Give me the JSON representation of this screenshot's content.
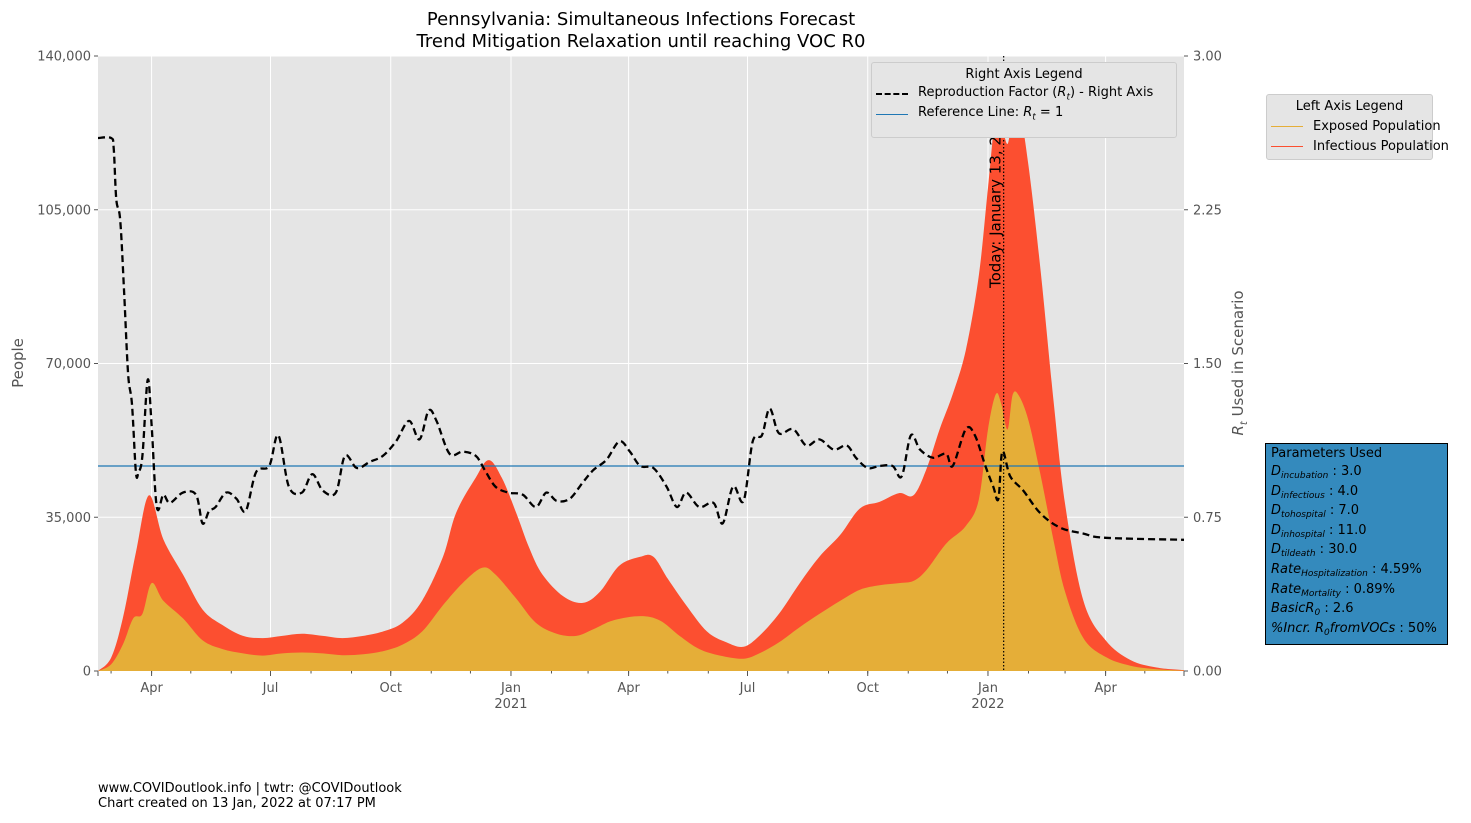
{
  "chart_data": {
    "type": "area",
    "title": "Pennsylvania: Simultaneous Infections Forecast",
    "subtitle": "Trend Mitigation Relaxation until reaching VOC R0",
    "ylabel": "People",
    "y2label": "R_t Used in Scenario",
    "ylim": [
      0,
      140000
    ],
    "y2lim": [
      0,
      3.0
    ],
    "xlim": [
      "2020-02-20",
      "2022-05-31"
    ],
    "y_ticks": [
      "0",
      "35,000",
      "70,000",
      "105,000",
      "140,000"
    ],
    "y2_ticks": [
      "0.00",
      "0.75",
      "1.50",
      "2.25",
      "3.00"
    ],
    "x_ticks": [
      {
        "date": "2020-04-01",
        "label": "Apr",
        "sub": ""
      },
      {
        "date": "2020-07-01",
        "label": "Jul",
        "sub": ""
      },
      {
        "date": "2020-10-01",
        "label": "Oct",
        "sub": ""
      },
      {
        "date": "2021-01-01",
        "label": "Jan",
        "sub": "2021"
      },
      {
        "date": "2021-04-01",
        "label": "Apr",
        "sub": ""
      },
      {
        "date": "2021-07-01",
        "label": "Jul",
        "sub": ""
      },
      {
        "date": "2021-10-01",
        "label": "Oct",
        "sub": ""
      },
      {
        "date": "2022-01-01",
        "label": "Jan",
        "sub": "2022"
      },
      {
        "date": "2022-04-01",
        "label": "Apr",
        "sub": ""
      }
    ],
    "grid": true,
    "series": [
      {
        "name": "Infectious Population",
        "color": "#fc4f30",
        "axis": "left",
        "points": [
          [
            "2020-02-20",
            0
          ],
          [
            "2020-03-01",
            3000
          ],
          [
            "2020-03-10",
            12000
          ],
          [
            "2020-03-20",
            27000
          ],
          [
            "2020-03-30",
            40000
          ],
          [
            "2020-04-10",
            30000
          ],
          [
            "2020-04-25",
            22000
          ],
          [
            "2020-05-10",
            14000
          ],
          [
            "2020-05-25",
            10500
          ],
          [
            "2020-06-10",
            8000
          ],
          [
            "2020-06-25",
            7500
          ],
          [
            "2020-07-10",
            8000
          ],
          [
            "2020-07-25",
            8500
          ],
          [
            "2020-08-10",
            8000
          ],
          [
            "2020-08-25",
            7500
          ],
          [
            "2020-09-10",
            8000
          ],
          [
            "2020-09-25",
            9000
          ],
          [
            "2020-10-10",
            11000
          ],
          [
            "2020-10-25",
            16000
          ],
          [
            "2020-11-10",
            26000
          ],
          [
            "2020-11-20",
            36000
          ],
          [
            "2020-12-05",
            44000
          ],
          [
            "2020-12-15",
            48000
          ],
          [
            "2020-12-25",
            44000
          ],
          [
            "2021-01-05",
            36000
          ],
          [
            "2021-01-15",
            28000
          ],
          [
            "2021-01-25",
            22000
          ],
          [
            "2021-02-10",
            17000
          ],
          [
            "2021-02-25",
            15500
          ],
          [
            "2021-03-10",
            18000
          ],
          [
            "2021-03-25",
            24000
          ],
          [
            "2021-04-10",
            26000
          ],
          [
            "2021-04-20",
            26000
          ],
          [
            "2021-05-01",
            21000
          ],
          [
            "2021-05-15",
            15000
          ],
          [
            "2021-05-31",
            9000
          ],
          [
            "2021-06-15",
            6500
          ],
          [
            "2021-06-28",
            5500
          ],
          [
            "2021-07-10",
            8000
          ],
          [
            "2021-07-25",
            13000
          ],
          [
            "2021-08-10",
            20000
          ],
          [
            "2021-08-25",
            26000
          ],
          [
            "2021-09-10",
            31000
          ],
          [
            "2021-09-25",
            37000
          ],
          [
            "2021-10-10",
            38500
          ],
          [
            "2021-10-25",
            40500
          ],
          [
            "2021-11-05",
            40000
          ],
          [
            "2021-11-15",
            46000
          ],
          [
            "2021-11-25",
            55000
          ],
          [
            "2021-12-05",
            63000
          ],
          [
            "2021-12-15",
            73000
          ],
          [
            "2021-12-25",
            90000
          ],
          [
            "2022-01-01",
            110000
          ],
          [
            "2022-01-07",
            127000
          ],
          [
            "2022-01-11",
            125000
          ],
          [
            "2022-01-16",
            120000
          ],
          [
            "2022-01-20",
            127000
          ],
          [
            "2022-01-25",
            128000
          ],
          [
            "2022-02-01",
            115000
          ],
          [
            "2022-02-10",
            92000
          ],
          [
            "2022-02-20",
            62000
          ],
          [
            "2022-03-01",
            38000
          ],
          [
            "2022-03-15",
            16000
          ],
          [
            "2022-04-01",
            7000
          ],
          [
            "2022-04-20",
            2500
          ],
          [
            "2022-05-10",
            800
          ],
          [
            "2022-05-31",
            200
          ]
        ]
      },
      {
        "name": "Exposed Population",
        "color": "#e5ae38",
        "axis": "left",
        "points": [
          [
            "2020-02-20",
            0
          ],
          [
            "2020-03-01",
            1500
          ],
          [
            "2020-03-10",
            6000
          ],
          [
            "2020-03-18",
            12000
          ],
          [
            "2020-03-25",
            13000
          ],
          [
            "2020-04-01",
            20000
          ],
          [
            "2020-04-10",
            16000
          ],
          [
            "2020-04-25",
            12000
          ],
          [
            "2020-05-10",
            7000
          ],
          [
            "2020-05-25",
            5000
          ],
          [
            "2020-06-10",
            4000
          ],
          [
            "2020-06-25",
            3500
          ],
          [
            "2020-07-10",
            4000
          ],
          [
            "2020-07-25",
            4200
          ],
          [
            "2020-08-10",
            4000
          ],
          [
            "2020-08-25",
            3600
          ],
          [
            "2020-09-10",
            3800
          ],
          [
            "2020-09-25",
            4500
          ],
          [
            "2020-10-10",
            6000
          ],
          [
            "2020-10-25",
            9000
          ],
          [
            "2020-11-10",
            15000
          ],
          [
            "2020-11-25",
            20000
          ],
          [
            "2020-12-10",
            23500
          ],
          [
            "2020-12-20",
            22000
          ],
          [
            "2021-01-05",
            16500
          ],
          [
            "2021-01-20",
            11000
          ],
          [
            "2021-02-05",
            8500
          ],
          [
            "2021-02-20",
            8000
          ],
          [
            "2021-03-05",
            9500
          ],
          [
            "2021-03-20",
            11500
          ],
          [
            "2021-04-10",
            12500
          ],
          [
            "2021-04-25",
            11500
          ],
          [
            "2021-05-10",
            8000
          ],
          [
            "2021-05-25",
            5000
          ],
          [
            "2021-06-10",
            3500
          ],
          [
            "2021-06-28",
            2800
          ],
          [
            "2021-07-10",
            4000
          ],
          [
            "2021-07-25",
            6500
          ],
          [
            "2021-08-10",
            10000
          ],
          [
            "2021-08-25",
            13000
          ],
          [
            "2021-09-10",
            16000
          ],
          [
            "2021-09-25",
            18500
          ],
          [
            "2021-10-10",
            19500
          ],
          [
            "2021-10-25",
            20000
          ],
          [
            "2021-11-05",
            20500
          ],
          [
            "2021-11-15",
            23000
          ],
          [
            "2021-11-30",
            29000
          ],
          [
            "2021-12-15",
            33000
          ],
          [
            "2021-12-25",
            39000
          ],
          [
            "2022-01-01",
            55000
          ],
          [
            "2022-01-07",
            63000
          ],
          [
            "2022-01-11",
            61000
          ],
          [
            "2022-01-16",
            55000
          ],
          [
            "2022-01-20",
            63000
          ],
          [
            "2022-01-25",
            62500
          ],
          [
            "2022-02-01",
            57000
          ],
          [
            "2022-02-10",
            45000
          ],
          [
            "2022-02-20",
            30000
          ],
          [
            "2022-03-01",
            18000
          ],
          [
            "2022-03-15",
            7500
          ],
          [
            "2022-04-01",
            3200
          ],
          [
            "2022-04-20",
            1200
          ],
          [
            "2022-05-10",
            400
          ],
          [
            "2022-05-31",
            100
          ]
        ]
      },
      {
        "name": "Reproduction Factor ($R_t$) - Right Axis",
        "color": "#000000",
        "axis": "right",
        "style": "dashed",
        "points": [
          [
            "2020-02-20",
            2.6
          ],
          [
            "2020-03-01",
            2.6
          ],
          [
            "2020-03-03",
            2.55
          ],
          [
            "2020-03-05",
            2.3
          ],
          [
            "2020-03-08",
            2.2
          ],
          [
            "2020-03-11",
            1.85
          ],
          [
            "2020-03-14",
            1.45
          ],
          [
            "2020-03-17",
            1.3
          ],
          [
            "2020-03-20",
            0.97
          ],
          [
            "2020-03-22",
            0.97
          ],
          [
            "2020-03-25",
            1.05
          ],
          [
            "2020-03-29",
            1.42
          ],
          [
            "2020-04-01",
            1.2
          ],
          [
            "2020-04-05",
            0.8
          ],
          [
            "2020-04-10",
            0.86
          ],
          [
            "2020-04-15",
            0.82
          ],
          [
            "2020-04-25",
            0.87
          ],
          [
            "2020-05-05",
            0.86
          ],
          [
            "2020-05-10",
            0.72
          ],
          [
            "2020-05-15",
            0.78
          ],
          [
            "2020-05-20",
            0.8
          ],
          [
            "2020-05-28",
            0.87
          ],
          [
            "2020-06-05",
            0.84
          ],
          [
            "2020-06-12",
            0.78
          ],
          [
            "2020-06-20",
            0.97
          ],
          [
            "2020-06-30",
            1.0
          ],
          [
            "2020-07-07",
            1.15
          ],
          [
            "2020-07-15",
            0.9
          ],
          [
            "2020-07-25",
            0.87
          ],
          [
            "2020-08-02",
            0.96
          ],
          [
            "2020-08-10",
            0.88
          ],
          [
            "2020-08-20",
            0.87
          ],
          [
            "2020-08-27",
            1.05
          ],
          [
            "2020-09-05",
            0.99
          ],
          [
            "2020-09-15",
            1.02
          ],
          [
            "2020-09-25",
            1.05
          ],
          [
            "2020-10-05",
            1.12
          ],
          [
            "2020-10-15",
            1.22
          ],
          [
            "2020-10-23",
            1.13
          ],
          [
            "2020-10-30",
            1.27
          ],
          [
            "2020-11-05",
            1.22
          ],
          [
            "2020-11-15",
            1.06
          ],
          [
            "2020-11-25",
            1.07
          ],
          [
            "2020-12-05",
            1.05
          ],
          [
            "2020-12-12",
            0.98
          ],
          [
            "2020-12-20",
            0.9
          ],
          [
            "2020-12-30",
            0.87
          ],
          [
            "2021-01-10",
            0.86
          ],
          [
            "2021-01-20",
            0.8
          ],
          [
            "2021-01-28",
            0.87
          ],
          [
            "2021-02-05",
            0.83
          ],
          [
            "2021-02-15",
            0.84
          ],
          [
            "2021-02-25",
            0.92
          ],
          [
            "2021-03-05",
            0.98
          ],
          [
            "2021-03-15",
            1.03
          ],
          [
            "2021-03-25",
            1.12
          ],
          [
            "2021-04-02",
            1.07
          ],
          [
            "2021-04-10",
            1.0
          ],
          [
            "2021-04-20",
            0.99
          ],
          [
            "2021-04-30",
            0.9
          ],
          [
            "2021-05-08",
            0.8
          ],
          [
            "2021-05-15",
            0.87
          ],
          [
            "2021-05-25",
            0.8
          ],
          [
            "2021-06-05",
            0.82
          ],
          [
            "2021-06-12",
            0.72
          ],
          [
            "2021-06-20",
            0.9
          ],
          [
            "2021-06-28",
            0.83
          ],
          [
            "2021-07-05",
            1.12
          ],
          [
            "2021-07-12",
            1.15
          ],
          [
            "2021-07-18",
            1.28
          ],
          [
            "2021-07-25",
            1.16
          ],
          [
            "2021-08-05",
            1.18
          ],
          [
            "2021-08-15",
            1.1
          ],
          [
            "2021-08-25",
            1.13
          ],
          [
            "2021-09-05",
            1.08
          ],
          [
            "2021-09-15",
            1.1
          ],
          [
            "2021-09-22",
            1.04
          ],
          [
            "2021-10-01",
            0.99
          ],
          [
            "2021-10-10",
            1.0
          ],
          [
            "2021-10-20",
            1.0
          ],
          [
            "2021-10-27",
            0.95
          ],
          [
            "2021-11-03",
            1.15
          ],
          [
            "2021-11-10",
            1.08
          ],
          [
            "2021-11-20",
            1.04
          ],
          [
            "2021-11-30",
            1.06
          ],
          [
            "2021-12-05",
            1.0
          ],
          [
            "2021-12-15",
            1.18
          ],
          [
            "2021-12-22",
            1.15
          ],
          [
            "2021-12-30",
            1.0
          ],
          [
            "2022-01-05",
            0.9
          ],
          [
            "2022-01-09",
            0.84
          ],
          [
            "2022-01-12",
            1.07
          ],
          [
            "2022-01-18",
            0.95
          ],
          [
            "2022-01-28",
            0.88
          ],
          [
            "2022-02-10",
            0.77
          ],
          [
            "2022-02-25",
            0.7
          ],
          [
            "2022-03-15",
            0.67
          ],
          [
            "2022-04-01",
            0.65
          ],
          [
            "2022-05-31",
            0.64
          ]
        ]
      }
    ],
    "reference_line": {
      "name": "Reference Line: $R_t = 1$",
      "value": 1.0,
      "color": "#1f77b4",
      "axis": "right"
    },
    "today_line": {
      "date": "2022-01-13",
      "label": "Today: January 13, 2022"
    },
    "left_legend": {
      "title": "Left Axis Legend",
      "position": "outside-right-top",
      "entries": [
        "Exposed Population",
        "Infectious Population"
      ]
    },
    "right_legend": {
      "title": "Right Axis Legend",
      "position": "top-right",
      "entries": [
        "Reproduction Factor ($R_t$) - Right Axis",
        "Reference Line: $R_t = 1$"
      ]
    },
    "parameters_box": {
      "title": "Parameters Used",
      "items": [
        {
          "name": "D",
          "sub": "incubation",
          "value": "3.0"
        },
        {
          "name": "D",
          "sub": "infectious",
          "value": "4.0"
        },
        {
          "name": "D",
          "sub": "tohospital",
          "value": "7.0"
        },
        {
          "name": "D",
          "sub": "inhospital",
          "value": "11.0"
        },
        {
          "name": "D",
          "sub": "tildeath",
          "value": "30.0"
        },
        {
          "name": "Rate",
          "sub": "Hospitalization",
          "value": "4.59%"
        },
        {
          "name": "Rate",
          "sub": "Mortality",
          "value": "0.89%"
        },
        {
          "name": "BasicR",
          "sub": "0",
          "value": "2.6"
        },
        {
          "name": "%Incr. R",
          "sub": "0",
          "tail": "fromVOCs",
          "value": "50%"
        }
      ]
    }
  },
  "footer": {
    "line1": "www.COVIDoutlook.info | twtr: @COVIDoutlook",
    "line2": "Chart created on 13 Jan, 2022 at 07:17 PM"
  }
}
